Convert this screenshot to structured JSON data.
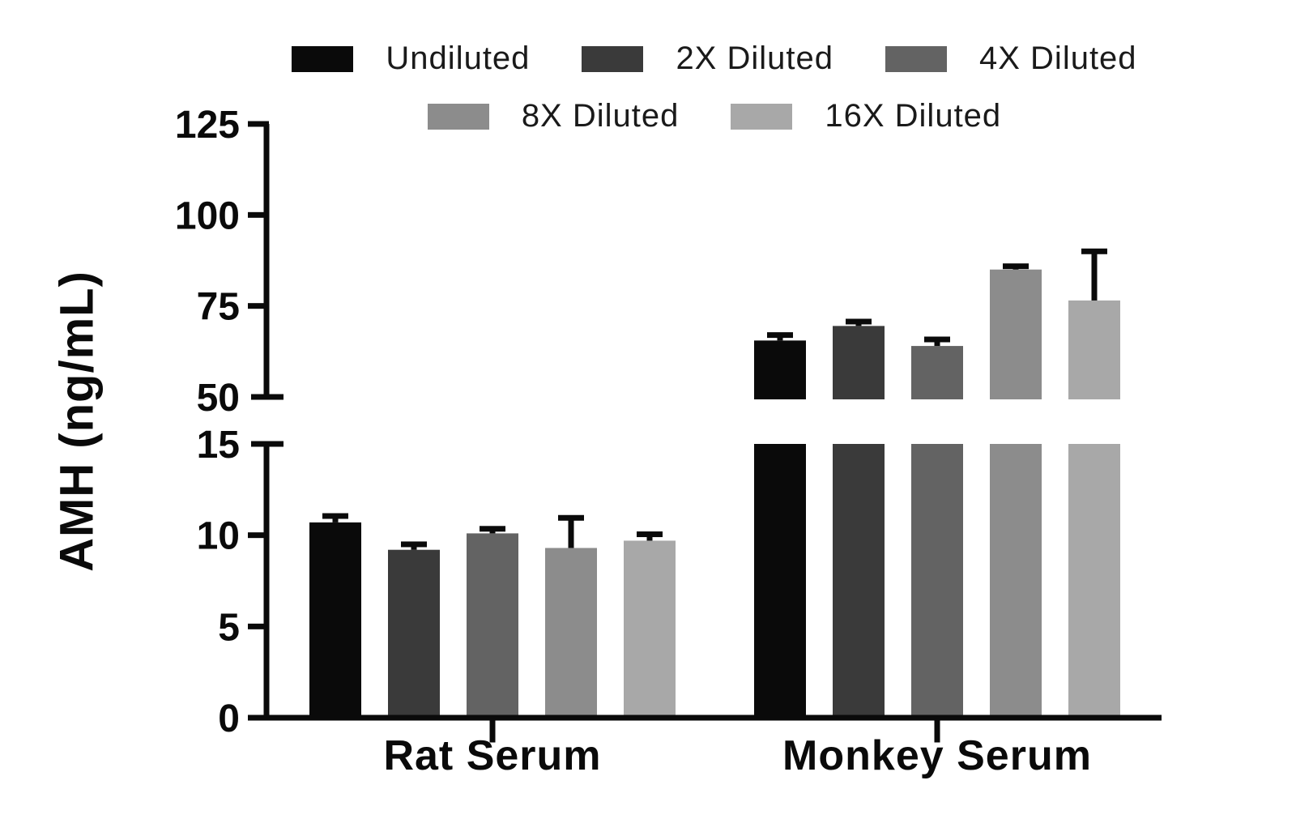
{
  "chart_data": {
    "type": "bar",
    "title": "",
    "ylabel": "AMH (ng/mL)",
    "xlabel": "",
    "categories": [
      "Rat Serum",
      "Monkey Serum"
    ],
    "series": [
      {
        "name": "Undiluted",
        "color": "#0a0a0a",
        "values": [
          10.7,
          65.5
        ],
        "errors": [
          0.35,
          1.5
        ]
      },
      {
        "name": "2X Diluted",
        "color": "#3a3a3a",
        "values": [
          9.2,
          69.5
        ],
        "errors": [
          0.3,
          1.2
        ]
      },
      {
        "name": "4X Diluted",
        "color": "#636363",
        "values": [
          10.1,
          64.0
        ],
        "errors": [
          0.25,
          1.8
        ]
      },
      {
        "name": "8X Diluted",
        "color": "#8c8c8c",
        "values": [
          9.3,
          85.0
        ],
        "errors": [
          1.65,
          0.9
        ]
      },
      {
        "name": "16X Diluted",
        "color": "#a8a8a8",
        "values": [
          9.7,
          76.5
        ],
        "errors": [
          0.35,
          13.5
        ]
      }
    ],
    "error_bar_color": "#0a0a0a",
    "axis_color": "#0a0a0a",
    "grid": false,
    "legend_position": "top-center",
    "axis_segments": [
      {
        "min": 0,
        "max": 15,
        "ticks": [
          0,
          5,
          10,
          15
        ],
        "tick_labels": [
          "0",
          "5",
          "10",
          "15"
        ]
      },
      {
        "min": 50,
        "max": 125,
        "ticks": [
          50,
          75,
          100,
          125
        ],
        "tick_labels": [
          "50",
          "75",
          "100",
          "125"
        ]
      }
    ]
  }
}
